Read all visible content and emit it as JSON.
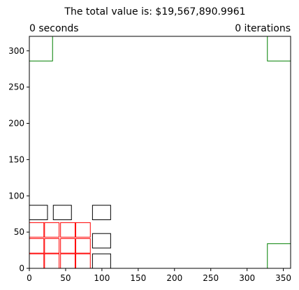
{
  "chart_data": {
    "type": "rectangles",
    "title": "The total value is: $19,567,890.9961",
    "left_label": "0 seconds",
    "right_label": "0 iterations",
    "xlim": [
      0,
      360
    ],
    "ylim": [
      0,
      320
    ],
    "xticks": [
      0,
      50,
      100,
      150,
      200,
      250,
      300,
      350
    ],
    "yticks": [
      0,
      50,
      100,
      150,
      200,
      250,
      300
    ],
    "grid": false,
    "groups": [
      {
        "color": "#008000",
        "rects": [
          {
            "x": 0,
            "y": 286,
            "w": 32,
            "h": 34
          },
          {
            "x": 328,
            "y": 286,
            "w": 32,
            "h": 34
          },
          {
            "x": 328,
            "y": 0,
            "w": 32,
            "h": 34
          }
        ]
      },
      {
        "color": "#000000",
        "rects": [
          {
            "x": 0,
            "y": 67,
            "w": 25,
            "h": 20
          },
          {
            "x": 33,
            "y": 67,
            "w": 25,
            "h": 20
          },
          {
            "x": 87,
            "y": 67,
            "w": 25,
            "h": 20
          },
          {
            "x": 87,
            "y": 28,
            "w": 25,
            "h": 20
          },
          {
            "x": 87,
            "y": 0,
            "w": 25,
            "h": 20
          }
        ]
      },
      {
        "color": "#ff0000",
        "rects": [
          {
            "x": 0,
            "y": 43,
            "w": 20,
            "h": 20
          },
          {
            "x": 21,
            "y": 43,
            "w": 20,
            "h": 20
          },
          {
            "x": 43,
            "y": 43,
            "w": 20,
            "h": 20
          },
          {
            "x": 64,
            "y": 43,
            "w": 20,
            "h": 20
          },
          {
            "x": 0,
            "y": 21,
            "w": 20,
            "h": 20
          },
          {
            "x": 21,
            "y": 21,
            "w": 20,
            "h": 20
          },
          {
            "x": 43,
            "y": 21,
            "w": 20,
            "h": 20
          },
          {
            "x": 64,
            "y": 21,
            "w": 20,
            "h": 20
          },
          {
            "x": 0,
            "y": 0,
            "w": 20,
            "h": 20
          },
          {
            "x": 21,
            "y": 0,
            "w": 20,
            "h": 20
          },
          {
            "x": 43,
            "y": 0,
            "w": 20,
            "h": 20
          },
          {
            "x": 64,
            "y": 0,
            "w": 20,
            "h": 20
          }
        ]
      }
    ]
  }
}
